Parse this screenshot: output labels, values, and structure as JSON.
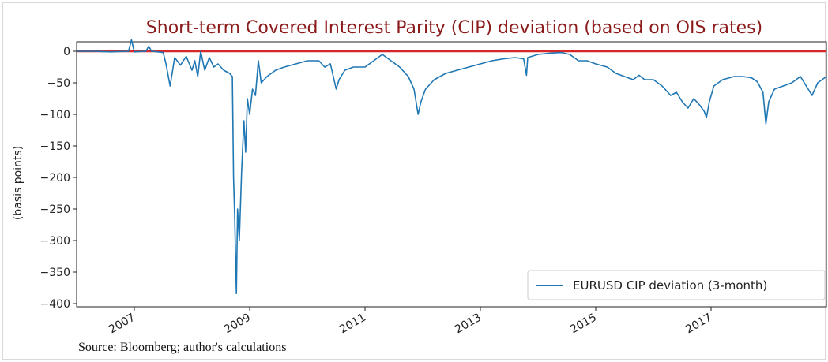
{
  "chart_data": {
    "type": "line",
    "title": "Short-term Covered Interest Parity (CIP) deviation (based on OIS rates)",
    "xlabel": "",
    "ylabel": "(basis points)",
    "xlim": [
      2006.0,
      2019.0
    ],
    "ylim": [
      -405,
      15
    ],
    "x_ticks": [
      2007,
      2009,
      2011,
      2013,
      2015,
      2017
    ],
    "x_tick_labels": [
      "2007",
      "2009",
      "2011",
      "2013",
      "2015",
      "2017"
    ],
    "y_ticks": [
      0,
      -50,
      -100,
      -150,
      -200,
      -250,
      -300,
      -350,
      -400
    ],
    "y_tick_labels": [
      "0",
      "−50",
      "−100",
      "−150",
      "−200",
      "−250",
      "−300",
      "−350",
      "−400"
    ],
    "grid": false,
    "legend_position": "lower-right",
    "reference_line": {
      "y": 0,
      "color": "#d62728"
    },
    "series": [
      {
        "name": "EURUSD CIP deviation (3-month)",
        "color": "#1f77b4",
        "points": [
          [
            2006.0,
            0
          ],
          [
            2006.3,
            0
          ],
          [
            2006.6,
            -1
          ],
          [
            2006.9,
            0
          ],
          [
            2006.95,
            18
          ],
          [
            2007.0,
            -1
          ],
          [
            2007.2,
            0
          ],
          [
            2007.25,
            8
          ],
          [
            2007.3,
            0
          ],
          [
            2007.5,
            -2
          ],
          [
            2007.55,
            -20
          ],
          [
            2007.62,
            -55
          ],
          [
            2007.7,
            -10
          ],
          [
            2007.8,
            -22
          ],
          [
            2007.9,
            -8
          ],
          [
            2008.0,
            -30
          ],
          [
            2008.05,
            -15
          ],
          [
            2008.1,
            -40
          ],
          [
            2008.15,
            0
          ],
          [
            2008.22,
            -30
          ],
          [
            2008.3,
            -10
          ],
          [
            2008.38,
            -25
          ],
          [
            2008.45,
            -20
          ],
          [
            2008.55,
            -30
          ],
          [
            2008.65,
            -35
          ],
          [
            2008.7,
            -40
          ],
          [
            2008.72,
            -200
          ],
          [
            2008.74,
            -260
          ],
          [
            2008.77,
            -384
          ],
          [
            2008.79,
            -250
          ],
          [
            2008.82,
            -300
          ],
          [
            2008.86,
            -190
          ],
          [
            2008.9,
            -110
          ],
          [
            2008.93,
            -160
          ],
          [
            2008.96,
            -75
          ],
          [
            2009.0,
            -100
          ],
          [
            2009.05,
            -60
          ],
          [
            2009.1,
            -70
          ],
          [
            2009.15,
            -15
          ],
          [
            2009.2,
            -50
          ],
          [
            2009.3,
            -40
          ],
          [
            2009.45,
            -30
          ],
          [
            2009.6,
            -25
          ],
          [
            2009.8,
            -20
          ],
          [
            2010.0,
            -15
          ],
          [
            2010.2,
            -15
          ],
          [
            2010.3,
            -25
          ],
          [
            2010.4,
            -20
          ],
          [
            2010.5,
            -60
          ],
          [
            2010.55,
            -45
          ],
          [
            2010.65,
            -30
          ],
          [
            2010.8,
            -25
          ],
          [
            2011.0,
            -25
          ],
          [
            2011.15,
            -15
          ],
          [
            2011.3,
            -5
          ],
          [
            2011.45,
            -15
          ],
          [
            2011.6,
            -25
          ],
          [
            2011.75,
            -40
          ],
          [
            2011.85,
            -60
          ],
          [
            2011.92,
            -100
          ],
          [
            2011.97,
            -80
          ],
          [
            2012.05,
            -60
          ],
          [
            2012.2,
            -45
          ],
          [
            2012.4,
            -35
          ],
          [
            2012.6,
            -30
          ],
          [
            2012.8,
            -25
          ],
          [
            2013.0,
            -20
          ],
          [
            2013.2,
            -15
          ],
          [
            2013.4,
            -12
          ],
          [
            2013.6,
            -10
          ],
          [
            2013.75,
            -12
          ],
          [
            2013.8,
            -38
          ],
          [
            2013.82,
            -10
          ],
          [
            2014.0,
            -5
          ],
          [
            2014.2,
            -3
          ],
          [
            2014.4,
            -2
          ],
          [
            2014.55,
            -5
          ],
          [
            2014.7,
            -15
          ],
          [
            2014.85,
            -15
          ],
          [
            2015.0,
            -20
          ],
          [
            2015.2,
            -25
          ],
          [
            2015.35,
            -35
          ],
          [
            2015.5,
            -40
          ],
          [
            2015.65,
            -45
          ],
          [
            2015.75,
            -38
          ],
          [
            2015.85,
            -45
          ],
          [
            2016.0,
            -45
          ],
          [
            2016.15,
            -55
          ],
          [
            2016.3,
            -70
          ],
          [
            2016.4,
            -65
          ],
          [
            2016.5,
            -80
          ],
          [
            2016.6,
            -90
          ],
          [
            2016.7,
            -75
          ],
          [
            2016.8,
            -85
          ],
          [
            2016.88,
            -95
          ],
          [
            2016.92,
            -105
          ],
          [
            2016.97,
            -80
          ],
          [
            2017.05,
            -55
          ],
          [
            2017.2,
            -45
          ],
          [
            2017.4,
            -40
          ],
          [
            2017.55,
            -40
          ],
          [
            2017.7,
            -42
          ],
          [
            2017.8,
            -48
          ],
          [
            2017.9,
            -65
          ],
          [
            2017.95,
            -115
          ],
          [
            2018.0,
            -80
          ],
          [
            2018.1,
            -60
          ],
          [
            2018.25,
            -55
          ],
          [
            2018.4,
            -50
          ],
          [
            2018.55,
            -40
          ],
          [
            2018.65,
            -55
          ],
          [
            2018.75,
            -70
          ],
          [
            2018.85,
            -50
          ],
          [
            2019.0,
            -40
          ]
        ]
      }
    ]
  },
  "source_note": "Source: Bloomberg; author's calculations"
}
